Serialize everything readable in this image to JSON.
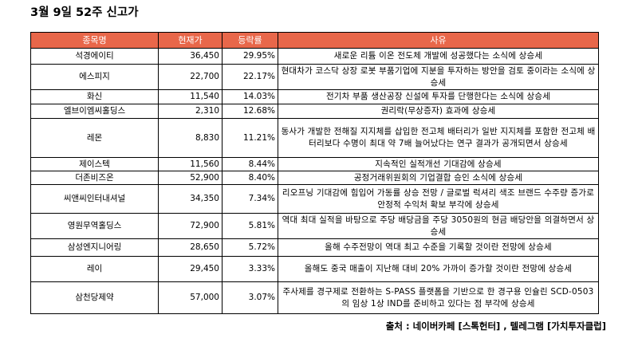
{
  "title": "3월 9일 52주 신고가",
  "headers": [
    "종목명",
    "현재가",
    "등락률",
    "사유"
  ],
  "rows": [
    {
      "name": "석경에이티",
      "price": "36,450",
      "change": "29.95%",
      "reason": "새로운 리튬 이온 전도체 개발에 성공했다는 소식에 상승세"
    },
    {
      "name": "에스피지",
      "price": "22,700",
      "change": "22.17%",
      "reason": "현대차가 코스닥 상장 로봇 부품기업에 지분을 투자하는 방안을 검토 중이라는 소식에 상승세"
    },
    {
      "name": "화신",
      "price": "11,540",
      "change": "14.03%",
      "reason": "전기차 부품 생산공장 신설에 투자를 단행한다는 소식에 상승세"
    },
    {
      "name": "엘브이엠씨홀딩스",
      "price": "2,310",
      "change": "12.68%",
      "reason": "권리락(무상증자) 효과에 상승세"
    },
    {
      "name": "레몬",
      "price": "8,830",
      "change": "11.21%",
      "reason": "동사가 개발한 전해질 지지체를 삽입한 전고체 배터리가 일반 지지체를 포함한 전고체 배터리보다 수명이 최대 약 7배 늘어났다는 연구 결과가 공개되면서 상승세"
    },
    {
      "name": "제이스텍",
      "price": "11,560",
      "change": "8.44%",
      "reason": "지속적인 실적개선 기대감에 상승세"
    },
    {
      "name": "더존비즈온",
      "price": "52,900",
      "change": "8.40%",
      "reason": "공정거래위원회의 기업결합 승인 소식에 상승세"
    },
    {
      "name": "씨앤씨인터내셔널",
      "price": "34,350",
      "change": "7.34%",
      "reason": "리오프닝 기대감에 힘입어 가동률 상승 전망 / 글로벌 럭셔리 색조 브랜드 수주량 증가로 안정적 수익처 확보 부각에 상승세"
    },
    {
      "name": "영원무역홀딩스",
      "price": "72,900",
      "change": "5.81%",
      "reason": "역대 최대 실적을 바탕으로 주당 배당금을 주당 3050원의 현금 배당안을 의결하면서 상승세"
    },
    {
      "name": "삼성엔지니어링",
      "price": "28,650",
      "change": "5.72%",
      "reason": "올해 수주전망이 역대 최고 수준을 기록할 것이란 전망에 상승세"
    },
    {
      "name": "레이",
      "price": "29,450",
      "change": "3.33%",
      "reason": "올해도 중국 매출이 지난해 대비 20% 가까이 증가할 것이란 전망에 상승세"
    },
    {
      "name": "삼천당제약",
      "price": "57,000",
      "change": "3.07%",
      "reason": "주사제를 경구제로 전환하는 S-PASS 플랫폼을 기반으로 한 경구용 인슐린 SCD-0503의 임상 1상 IND를 준비하고 있다는 점 부각에 상승세"
    }
  ],
  "footer": "출처 : 네이버카페 [스톡헌터] , 텔레그램 [가치투자클럽]"
}
